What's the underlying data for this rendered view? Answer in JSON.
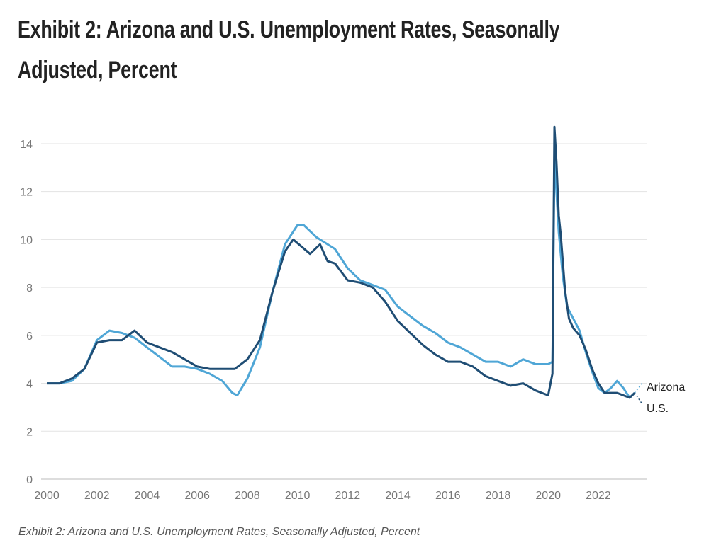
{
  "title": "Exhibit 2: Arizona and U.S. Unemployment Rates, Seasonally Adjusted, Percent",
  "caption": "Exhibit 2: Arizona and U.S. Unemployment Rates, Seasonally Adjusted, Percent",
  "chart_data": {
    "type": "line",
    "title": "Exhibit 2: Arizona and U.S. Unemployment Rates, Seasonally Adjusted, Percent",
    "xlabel": "",
    "ylabel": "",
    "xlim": [
      2000,
      2023.6
    ],
    "ylim": [
      0,
      14
    ],
    "x_ticks": [
      "2000",
      "2002",
      "2004",
      "2006",
      "2008",
      "2010",
      "2012",
      "2014",
      "2016",
      "2018",
      "2020",
      "2022"
    ],
    "y_ticks": [
      "0",
      "2",
      "4",
      "6",
      "8",
      "10",
      "12",
      "14"
    ],
    "grid": "horizontal",
    "legend": "right, direct labels at line ends",
    "series": [
      {
        "name": "Arizona",
        "color": "#4fa6d6",
        "points": [
          [
            2000,
            4.0
          ],
          [
            2000.5,
            4.0
          ],
          [
            2001,
            4.1
          ],
          [
            2001.5,
            4.6
          ],
          [
            2002,
            5.8
          ],
          [
            2002.5,
            6.2
          ],
          [
            2003,
            6.1
          ],
          [
            2003.5,
            5.9
          ],
          [
            2004,
            5.5
          ],
          [
            2004.5,
            5.1
          ],
          [
            2005,
            4.7
          ],
          [
            2005.5,
            4.7
          ],
          [
            2006,
            4.6
          ],
          [
            2006.5,
            4.4
          ],
          [
            2007,
            4.1
          ],
          [
            2007.4,
            3.6
          ],
          [
            2007.6,
            3.5
          ],
          [
            2008,
            4.2
          ],
          [
            2008.5,
            5.5
          ],
          [
            2009,
            7.8
          ],
          [
            2009.5,
            9.8
          ],
          [
            2010,
            10.6
          ],
          [
            2010.25,
            10.6
          ],
          [
            2010.75,
            10.1
          ],
          [
            2011.5,
            9.6
          ],
          [
            2012,
            8.8
          ],
          [
            2012.5,
            8.3
          ],
          [
            2013,
            8.1
          ],
          [
            2013.5,
            7.9
          ],
          [
            2014,
            7.2
          ],
          [
            2014.5,
            6.8
          ],
          [
            2015,
            6.4
          ],
          [
            2015.5,
            6.1
          ],
          [
            2016,
            5.7
          ],
          [
            2016.5,
            5.5
          ],
          [
            2017,
            5.2
          ],
          [
            2017.5,
            4.9
          ],
          [
            2018,
            4.9
          ],
          [
            2018.5,
            4.7
          ],
          [
            2019,
            5.0
          ],
          [
            2019.5,
            4.8
          ],
          [
            2020,
            4.8
          ],
          [
            2020.17,
            4.9
          ],
          [
            2020.25,
            13.5
          ],
          [
            2020.42,
            10.3
          ],
          [
            2020.58,
            8.5
          ],
          [
            2020.75,
            7.2
          ],
          [
            2021,
            6.7
          ],
          [
            2021.25,
            6.2
          ],
          [
            2021.5,
            5.3
          ],
          [
            2021.75,
            4.5
          ],
          [
            2022,
            3.8
          ],
          [
            2022.25,
            3.6
          ],
          [
            2022.5,
            3.8
          ],
          [
            2022.75,
            4.1
          ],
          [
            2023,
            3.8
          ],
          [
            2023.25,
            3.4
          ],
          [
            2023.45,
            3.6
          ]
        ]
      },
      {
        "name": "U.S.",
        "color": "#1f4d74",
        "points": [
          [
            2000,
            4.0
          ],
          [
            2000.5,
            4.0
          ],
          [
            2001,
            4.2
          ],
          [
            2001.5,
            4.6
          ],
          [
            2002,
            5.7
          ],
          [
            2002.5,
            5.8
          ],
          [
            2003,
            5.8
          ],
          [
            2003.5,
            6.2
          ],
          [
            2004,
            5.7
          ],
          [
            2004.5,
            5.5
          ],
          [
            2005,
            5.3
          ],
          [
            2005.5,
            5.0
          ],
          [
            2006,
            4.7
          ],
          [
            2006.5,
            4.6
          ],
          [
            2007,
            4.6
          ],
          [
            2007.5,
            4.6
          ],
          [
            2008,
            5.0
          ],
          [
            2008.5,
            5.8
          ],
          [
            2009,
            7.8
          ],
          [
            2009.5,
            9.5
          ],
          [
            2009.83,
            10.0
          ],
          [
            2010.5,
            9.4
          ],
          [
            2010.9,
            9.8
          ],
          [
            2011.2,
            9.1
          ],
          [
            2011.5,
            9.0
          ],
          [
            2012,
            8.3
          ],
          [
            2012.5,
            8.2
          ],
          [
            2013,
            8.0
          ],
          [
            2013.5,
            7.4
          ],
          [
            2014,
            6.6
          ],
          [
            2014.5,
            6.1
          ],
          [
            2015,
            5.6
          ],
          [
            2015.5,
            5.2
          ],
          [
            2016,
            4.9
          ],
          [
            2016.5,
            4.9
          ],
          [
            2017,
            4.7
          ],
          [
            2017.5,
            4.3
          ],
          [
            2018,
            4.1
          ],
          [
            2018.5,
            3.9
          ],
          [
            2019,
            4.0
          ],
          [
            2019.5,
            3.7
          ],
          [
            2020,
            3.5
          ],
          [
            2020.17,
            4.4
          ],
          [
            2020.25,
            14.7
          ],
          [
            2020.33,
            13.2
          ],
          [
            2020.42,
            11.0
          ],
          [
            2020.5,
            10.2
          ],
          [
            2020.67,
            7.9
          ],
          [
            2020.83,
            6.7
          ],
          [
            2021,
            6.3
          ],
          [
            2021.25,
            6.0
          ],
          [
            2021.5,
            5.4
          ],
          [
            2021.75,
            4.6
          ],
          [
            2022,
            4.0
          ],
          [
            2022.25,
            3.6
          ],
          [
            2022.5,
            3.6
          ],
          [
            2022.75,
            3.6
          ],
          [
            2023,
            3.5
          ],
          [
            2023.25,
            3.4
          ],
          [
            2023.45,
            3.6
          ]
        ]
      }
    ]
  }
}
